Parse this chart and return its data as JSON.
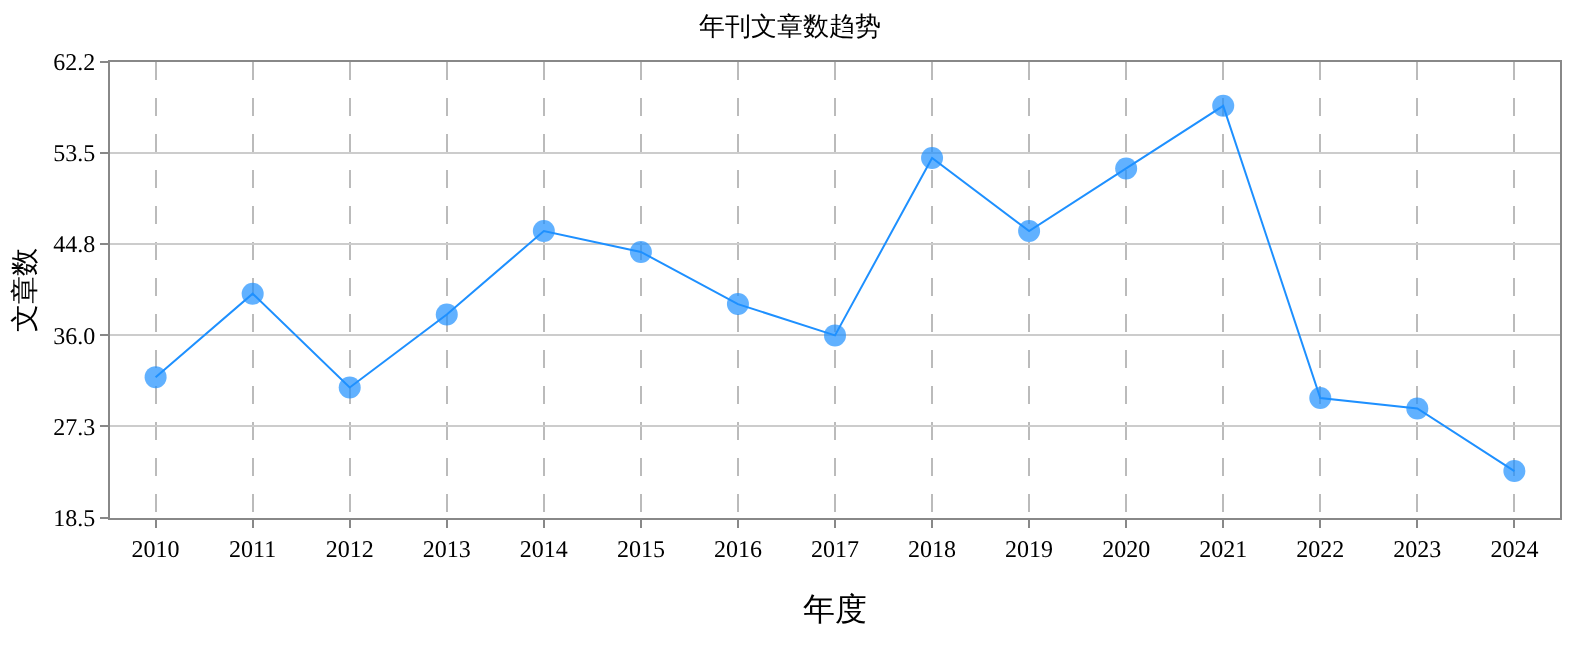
{
  "chart_data": {
    "type": "line",
    "title": "年刊文章数趋势",
    "xlabel": "年度",
    "ylabel": "文章数",
    "categories": [
      "2010",
      "2011",
      "2012",
      "2013",
      "2014",
      "2015",
      "2016",
      "2017",
      "2018",
      "2019",
      "2020",
      "2021",
      "2022",
      "2023",
      "2024"
    ],
    "series": [
      {
        "color": "#1e90ff",
        "values": [
          32,
          40,
          31,
          38,
          46,
          44,
          39,
          36,
          53,
          46,
          52,
          58,
          30,
          29,
          23
        ]
      }
    ],
    "ylim": [
      18.5,
      62.2
    ],
    "yticks": [
      {
        "value": 18.5,
        "label": "18.5"
      },
      {
        "value": 27.3,
        "label": "27.3"
      },
      {
        "value": 36,
        "label": "36.0"
      },
      {
        "value": 44.8,
        "label": "44.8"
      },
      {
        "value": 53.5,
        "label": "53.5"
      },
      {
        "value": 62.2,
        "label": "62.2"
      }
    ],
    "grid": true,
    "marker": "circle",
    "line_style": "solid"
  }
}
